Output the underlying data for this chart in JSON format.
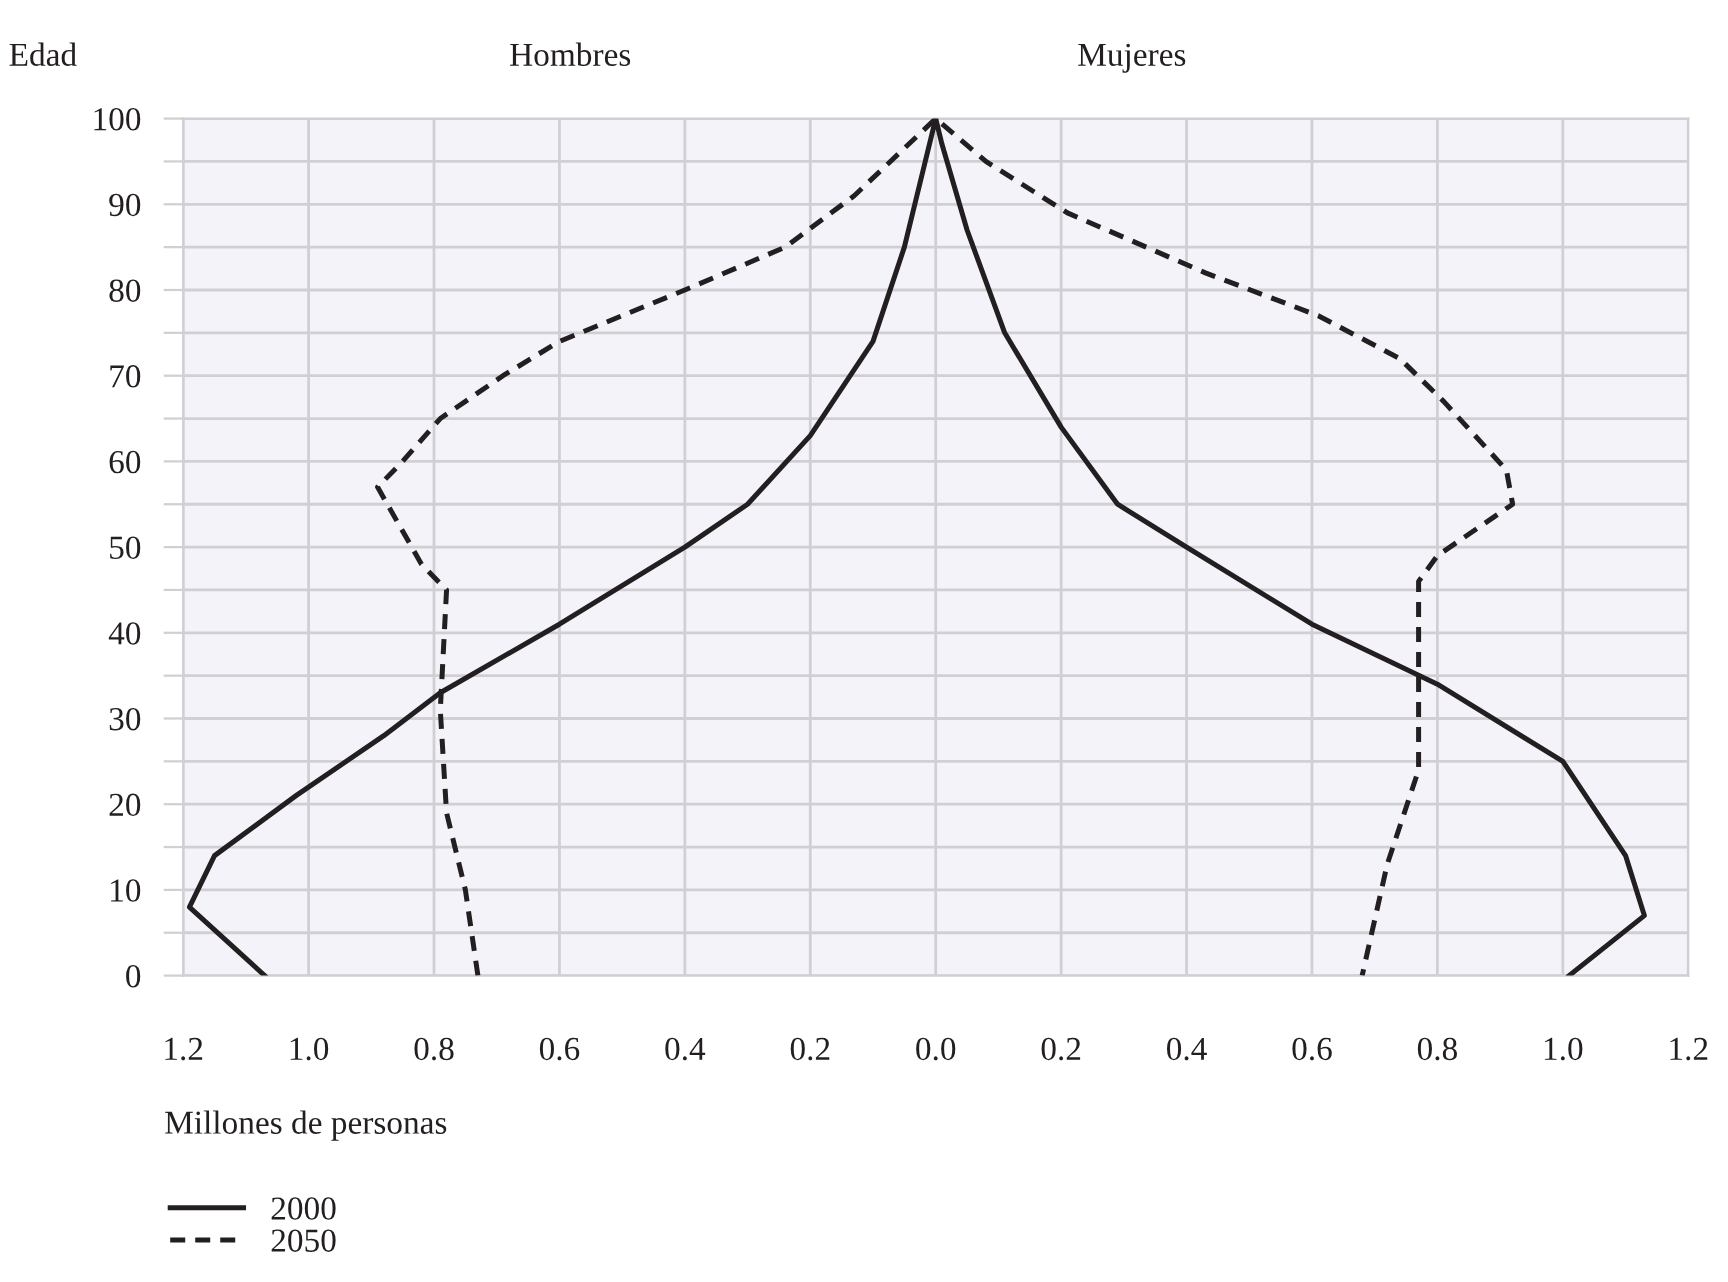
{
  "chart_data": {
    "type": "line",
    "ylabel": "Edad",
    "xlabel": "Millones de personas",
    "annotations": [
      "Hombres",
      "Mujeres"
    ],
    "series": [
      {
        "name": "2000",
        "color": "#231f20",
        "line_style": "solid",
        "x": [
          -1.07,
          -1.19,
          -1.15,
          -1.02,
          -0.88,
          -0.79,
          -0.6,
          -0.4,
          -0.3,
          -0.2,
          -0.1,
          -0.05,
          -0.02,
          0,
          0.01,
          0.05,
          0.11,
          0.2,
          0.29,
          0.4,
          0.6,
          0.8,
          1.0,
          1.1,
          1.13,
          1.01
        ],
        "values": [
          0,
          8,
          14,
          21,
          28,
          33,
          41,
          50,
          55,
          63,
          74,
          85,
          94,
          100,
          97,
          87,
          75,
          64,
          55,
          50,
          41,
          34,
          25,
          14,
          7,
          0
        ]
      },
      {
        "name": "2050",
        "color": "#231f20",
        "line_style": "dashed",
        "x": [
          -0.73,
          -0.75,
          -0.78,
          -0.79,
          -0.78,
          -0.82,
          -0.89,
          -0.85,
          -0.79,
          -0.69,
          -0.6,
          -0.4,
          -0.24,
          -0.13,
          0,
          0.08,
          0.21,
          0.43,
          0.61,
          0.74,
          0.81,
          0.91,
          0.92,
          0.8,
          0.77,
          0.77,
          0.77,
          0.72,
          0.68
        ],
        "values": [
          0,
          10,
          19,
          31,
          45,
          48,
          57,
          60,
          65,
          70,
          74,
          80,
          85,
          91,
          100,
          95,
          89,
          82,
          77,
          72,
          67,
          59,
          55,
          49,
          46,
          35,
          24,
          13,
          0
        ]
      }
    ],
    "xlim": [
      -1.2,
      1.2
    ],
    "xticks": [
      {
        "value": -1.2,
        "label": "1.2"
      },
      {
        "value": -1.0,
        "label": "1.0"
      },
      {
        "value": -0.8,
        "label": "0.8"
      },
      {
        "value": -0.6,
        "label": "0.6"
      },
      {
        "value": -0.4,
        "label": "0.4"
      },
      {
        "value": -0.2,
        "label": "0.2"
      },
      {
        "value": 0,
        "label": "0.0"
      },
      {
        "value": 0.2,
        "label": "0.2"
      },
      {
        "value": 0.4,
        "label": "0.4"
      },
      {
        "value": 0.6,
        "label": "0.6"
      },
      {
        "value": 0.8,
        "label": "0.8"
      },
      {
        "value": 1.0,
        "label": "1.0"
      },
      {
        "value": 1.2,
        "label": "1.2"
      }
    ],
    "ylim": [
      0,
      100
    ],
    "yticks": [
      0,
      {
        "value": 5,
        "label": null
      },
      10,
      {
        "value": 15,
        "label": null
      },
      20,
      {
        "value": 25,
        "label": null
      },
      30,
      {
        "value": 35,
        "label": null
      },
      40,
      {
        "value": 45,
        "label": null
      },
      50,
      {
        "value": 55,
        "label": null
      },
      60,
      {
        "value": 65,
        "label": null
      },
      70,
      {
        "value": 75,
        "label": null
      },
      80,
      {
        "value": 85,
        "label": null
      },
      90,
      {
        "value": 95,
        "label": null
      },
      100
    ],
    "grid": true,
    "legend": "bottom left",
    "marker": "none"
  }
}
